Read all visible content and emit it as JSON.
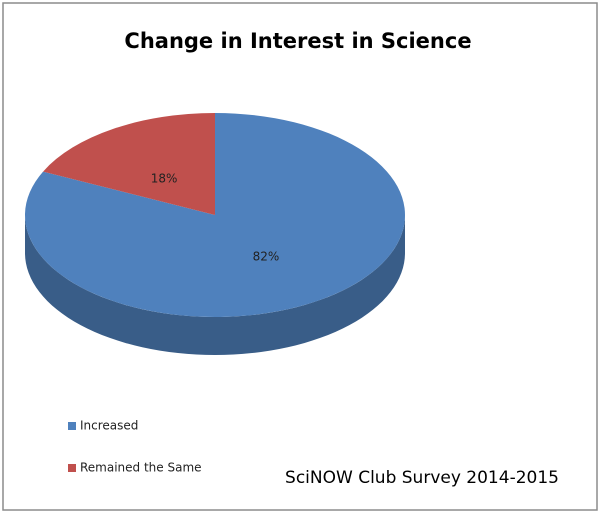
{
  "chart_data": {
    "type": "pie3d",
    "title": "Change in Interest in Science",
    "categories": [
      "Increased",
      "Remained the Same"
    ],
    "values": [
      82,
      18
    ],
    "value_labels": [
      "82%",
      "18%"
    ],
    "colors": [
      "#4f81bd",
      "#c0504d"
    ],
    "annotation": "SciNOW Club Survey 2014-2015",
    "legend": "bottom-left"
  }
}
